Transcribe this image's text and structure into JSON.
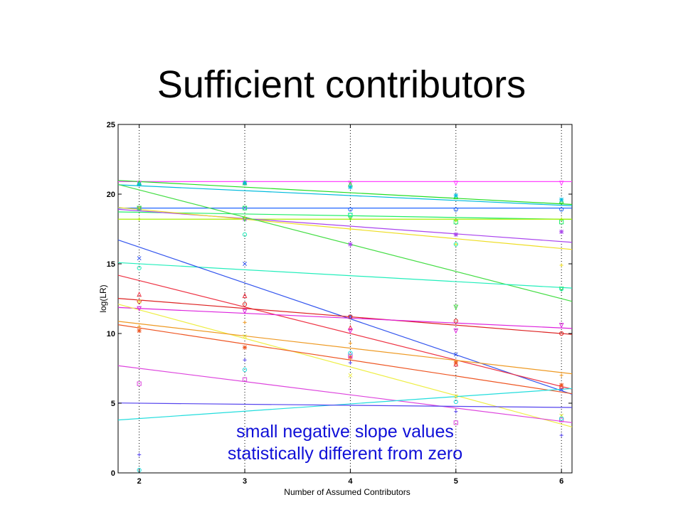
{
  "title": "Sufficient contributors",
  "annotation": [
    "small negative slope values",
    "statistically different from zero"
  ],
  "chart_data": {
    "type": "scatter",
    "xlabel": "Number of Assumed Contributors",
    "ylabel": "log(LR)",
    "xlim": [
      1.8,
      6.1
    ],
    "ylim": [
      0,
      25
    ],
    "xticks": [
      2,
      3,
      4,
      5,
      6
    ],
    "yticks": [
      0,
      5,
      10,
      15,
      20,
      25
    ],
    "grid": "vertical dotted lines at x ticks",
    "series": [
      {
        "color": "#ff44ff",
        "marker": "v",
        "fit": [
          20.9,
          20.9
        ],
        "points": [
          [
            2,
            20.8
          ],
          [
            3,
            20.8
          ],
          [
            4,
            20.8
          ],
          [
            5,
            20.8
          ],
          [
            6,
            20.8
          ]
        ]
      },
      {
        "color": "#22dd22",
        "marker": "^",
        "fit": [
          20.9,
          19.3
        ],
        "points": [
          [
            2,
            20.8
          ],
          [
            3,
            20.8
          ],
          [
            4,
            20.7
          ],
          [
            5,
            19.8
          ],
          [
            6,
            19.5
          ]
        ]
      },
      {
        "color": "#00bbdd",
        "marker": "*",
        "fit": [
          20.6,
          19.2
        ],
        "points": [
          [
            2,
            20.7
          ],
          [
            3,
            20.8
          ],
          [
            4,
            20.5
          ],
          [
            5,
            19.9
          ],
          [
            6,
            19.6
          ]
        ]
      },
      {
        "color": "#2266ff",
        "marker": "o",
        "fit": [
          19.0,
          19.0
        ],
        "points": [
          [
            2,
            19.0
          ],
          [
            3,
            19.0
          ],
          [
            4,
            18.9
          ],
          [
            5,
            18.9
          ],
          [
            6,
            18.9
          ]
        ]
      },
      {
        "color": "#22ee66",
        "marker": "s",
        "fit": [
          18.7,
          18.2
        ],
        "points": [
          [
            2,
            19.0
          ],
          [
            3,
            19.0
          ],
          [
            4,
            18.5
          ],
          [
            5,
            18.0
          ],
          [
            6,
            18.0
          ]
        ]
      },
      {
        "color": "#aaee00",
        "marker": "+",
        "fit": [
          18.2,
          18.2
        ],
        "points": [
          [
            2,
            18.2
          ],
          [
            3,
            18.2
          ],
          [
            4,
            18.2
          ],
          [
            5,
            18.1
          ],
          [
            6,
            18.2
          ]
        ]
      },
      {
        "color": "#aa44ee",
        "marker": "*",
        "fit": [
          18.8,
          16.6
        ],
        "points": [
          [
            2,
            19.0
          ],
          [
            3,
            18.2
          ],
          [
            4,
            16.4
          ],
          [
            5,
            17.1
          ],
          [
            6,
            17.3
          ]
        ]
      },
      {
        "color": "#eedd22",
        "marker": "+",
        "fit": [
          18.9,
          16.1
        ],
        "points": [
          [
            2,
            19.0
          ],
          [
            3,
            18.3
          ],
          [
            4,
            17.5
          ],
          [
            5,
            16.4
          ],
          [
            6,
            14.9
          ]
        ]
      },
      {
        "color": "#44dd44",
        "marker": "v",
        "fit": [
          20.3,
          12.5
        ],
        "points": [
          [
            2,
            19.0
          ],
          [
            3,
            18.2
          ],
          [
            4,
            18.3
          ],
          [
            5,
            11.9
          ],
          [
            6,
            13.2
          ]
        ]
      },
      {
        "color": "#22eebb",
        "marker": "o",
        "fit": [
          15.0,
          13.3
        ],
        "points": [
          [
            2,
            14.7
          ],
          [
            3,
            17.1
          ],
          [
            4,
            18.5
          ],
          [
            5,
            16.4
          ],
          [
            6,
            13.2
          ]
        ]
      },
      {
        "color": "#3355ee",
        "marker": "x",
        "fit": [
          16.2,
          5.9
        ],
        "points": [
          [
            2,
            15.4
          ],
          [
            3,
            15.0
          ],
          [
            4,
            11.2
          ],
          [
            5,
            8.5
          ],
          [
            6,
            6.0
          ]
        ]
      },
      {
        "color": "#ee3344",
        "marker": "^",
        "fit": [
          13.8,
          6.2
        ],
        "points": [
          [
            2,
            12.8
          ],
          [
            3,
            12.7
          ],
          [
            4,
            10.4
          ],
          [
            5,
            7.8
          ],
          [
            6,
            6.2
          ]
        ]
      },
      {
        "color": "#dd2222",
        "marker": "o",
        "fit": [
          12.4,
          10.0
        ],
        "points": [
          [
            2,
            12.3
          ],
          [
            3,
            12.1
          ],
          [
            4,
            11.2
          ],
          [
            5,
            10.9
          ],
          [
            6,
            10.0
          ]
        ]
      },
      {
        "color": "#dd22dd",
        "marker": "v",
        "fit": [
          11.8,
          10.4
        ],
        "points": [
          [
            2,
            11.8
          ],
          [
            3,
            11.6
          ],
          [
            4,
            10.2
          ],
          [
            5,
            10.2
          ],
          [
            6,
            10.6
          ]
        ]
      },
      {
        "color": "#eeee44",
        "marker": "x",
        "fit": [
          11.7,
          3.5
        ],
        "points": [
          [
            2,
            12.3
          ],
          [
            3,
            9.8
          ],
          [
            4,
            7.0
          ],
          [
            5,
            5.5
          ],
          [
            6,
            4.1
          ]
        ]
      },
      {
        "color": "#ee9922",
        "marker": "+",
        "fit": [
          10.7,
          7.2
        ],
        "points": [
          [
            2,
            10.5
          ],
          [
            3,
            10.8
          ],
          [
            4,
            9.3
          ],
          [
            5,
            8.0
          ],
          [
            6,
            7.0
          ]
        ]
      },
      {
        "color": "#ee5522",
        "marker": "*",
        "fit": [
          10.4,
          5.8
        ],
        "points": [
          [
            2,
            10.2
          ],
          [
            3,
            9.0
          ],
          [
            4,
            8.3
          ],
          [
            5,
            7.9
          ],
          [
            6,
            6.3
          ]
        ]
      },
      {
        "color": "#dd44dd",
        "marker": "s",
        "fit": [
          7.5,
          3.7
        ],
        "points": [
          [
            2,
            6.4
          ],
          [
            3,
            6.7
          ],
          [
            4,
            8.4
          ],
          [
            5,
            3.6
          ],
          [
            6,
            3.8
          ]
        ]
      },
      {
        "color": "#22dddd",
        "marker": "o",
        "fit": [
          3.9,
          6.0
        ],
        "points": [
          [
            2,
            0.2
          ],
          [
            3,
            7.4
          ],
          [
            4,
            8.6
          ],
          [
            5,
            5.1
          ],
          [
            6,
            3.9
          ]
        ]
      },
      {
        "color": "#5544ee",
        "marker": "+",
        "fit": [
          5.0,
          4.7
        ],
        "points": [
          [
            2,
            1.3
          ],
          [
            3,
            8.1
          ],
          [
            4,
            7.9
          ],
          [
            5,
            4.4
          ],
          [
            6,
            2.7
          ]
        ]
      }
    ]
  }
}
